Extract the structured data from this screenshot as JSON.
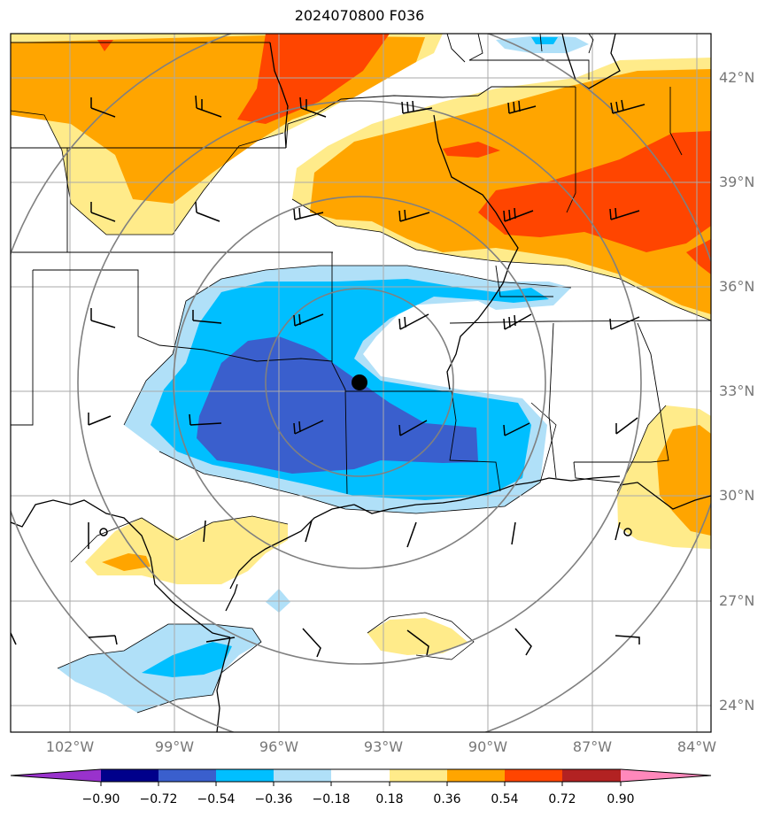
{
  "title": "2024070800 F036",
  "latitude_labels": [
    "42°N",
    "39°N",
    "36°N",
    "33°N",
    "30°N",
    "27°N",
    "24°N"
  ],
  "longitude_labels": [
    "102°W",
    "99°W",
    "96°W",
    "93°W",
    "90°W",
    "87°W",
    "84°W"
  ],
  "colorbar": {
    "labels": [
      "−0.90",
      "−0.72",
      "−0.54",
      "−0.36",
      "−0.18",
      "0.18",
      "0.36",
      "0.54",
      "0.72",
      "0.90"
    ],
    "colors": {
      "under": "#9932cc",
      "bins": [
        "#00008b",
        "#3a5fcd",
        "#00bfff",
        "#b0e0f8",
        "#ffffff",
        "#ffeb8a",
        "#ffa500",
        "#ff4500",
        "#b22222"
      ],
      "over": "#ff88bb"
    }
  },
  "colors": {
    "neg_strong": "#3a5fcd",
    "neg_mid": "#00bfff",
    "neg_weak": "#b0e0f8",
    "pos_weak": "#ffeb8a",
    "pos_mid": "#ffa500",
    "pos_strong": "#ff4500",
    "grid": "#aaaaaa",
    "range_rings": "#808080"
  }
}
